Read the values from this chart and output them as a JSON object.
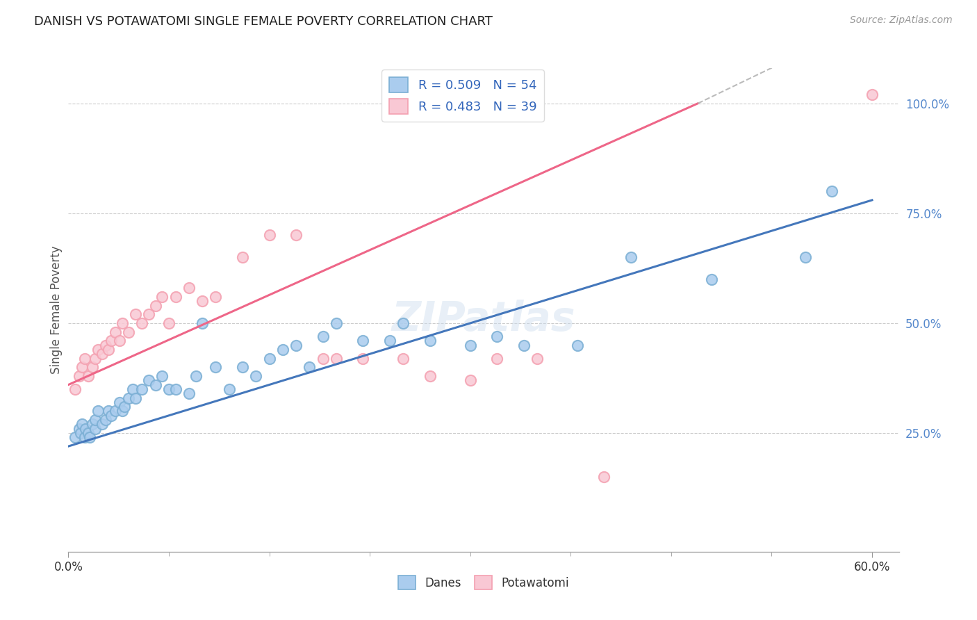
{
  "title": "DANISH VS POTAWATOMI SINGLE FEMALE POVERTY CORRELATION CHART",
  "source": "Source: ZipAtlas.com",
  "ylabel": "Single Female Poverty",
  "xlim": [
    0.0,
    0.62
  ],
  "ylim": [
    -0.02,
    1.08
  ],
  "ytick_vals_right": [
    0.25,
    0.5,
    0.75,
    1.0
  ],
  "ytick_labels_right": [
    "25.0%",
    "50.0%",
    "75.0%",
    "100.0%"
  ],
  "blue_color": "#7BAFD4",
  "blue_face_color": "#AACCEE",
  "pink_color": "#F4A0B0",
  "pink_face_color": "#F9C8D4",
  "blue_line_color": "#4477BB",
  "pink_line_color": "#EE6688",
  "trendline_extend_color": "#BBBBBB",
  "R_blue": 0.509,
  "N_blue": 54,
  "R_pink": 0.483,
  "N_pink": 39,
  "legend_label_blue": "Danes",
  "legend_label_pink": "Potawatomi",
  "watermark_text": "ZIPatlas",
  "blue_trendline": [
    [
      0.0,
      0.22
    ],
    [
      0.6,
      0.78
    ]
  ],
  "pink_trendline_solid": [
    [
      0.0,
      0.36
    ],
    [
      0.47,
      1.0
    ]
  ],
  "pink_trendline_dashed": [
    [
      0.47,
      1.0
    ],
    [
      0.62,
      1.22
    ]
  ],
  "blue_x": [
    0.005,
    0.008,
    0.009,
    0.01,
    0.012,
    0.013,
    0.015,
    0.016,
    0.018,
    0.02,
    0.02,
    0.022,
    0.025,
    0.028,
    0.03,
    0.032,
    0.035,
    0.038,
    0.04,
    0.042,
    0.045,
    0.048,
    0.05,
    0.055,
    0.06,
    0.065,
    0.07,
    0.075,
    0.08,
    0.09,
    0.095,
    0.1,
    0.11,
    0.12,
    0.13,
    0.14,
    0.15,
    0.16,
    0.17,
    0.18,
    0.19,
    0.2,
    0.22,
    0.24,
    0.25,
    0.27,
    0.3,
    0.32,
    0.34,
    0.38,
    0.42,
    0.48,
    0.55,
    0.57
  ],
  "blue_y": [
    0.24,
    0.26,
    0.25,
    0.27,
    0.24,
    0.26,
    0.25,
    0.24,
    0.27,
    0.26,
    0.28,
    0.3,
    0.27,
    0.28,
    0.3,
    0.29,
    0.3,
    0.32,
    0.3,
    0.31,
    0.33,
    0.35,
    0.33,
    0.35,
    0.37,
    0.36,
    0.38,
    0.35,
    0.35,
    0.34,
    0.38,
    0.5,
    0.4,
    0.35,
    0.4,
    0.38,
    0.42,
    0.44,
    0.45,
    0.4,
    0.47,
    0.5,
    0.46,
    0.46,
    0.5,
    0.46,
    0.45,
    0.47,
    0.45,
    0.45,
    0.65,
    0.6,
    0.65,
    0.8
  ],
  "pink_x": [
    0.005,
    0.008,
    0.01,
    0.012,
    0.015,
    0.018,
    0.02,
    0.022,
    0.025,
    0.028,
    0.03,
    0.032,
    0.035,
    0.038,
    0.04,
    0.045,
    0.05,
    0.055,
    0.06,
    0.065,
    0.07,
    0.075,
    0.08,
    0.09,
    0.1,
    0.11,
    0.13,
    0.15,
    0.17,
    0.19,
    0.2,
    0.22,
    0.25,
    0.27,
    0.3,
    0.32,
    0.35,
    0.4,
    0.6
  ],
  "pink_y": [
    0.35,
    0.38,
    0.4,
    0.42,
    0.38,
    0.4,
    0.42,
    0.44,
    0.43,
    0.45,
    0.44,
    0.46,
    0.48,
    0.46,
    0.5,
    0.48,
    0.52,
    0.5,
    0.52,
    0.54,
    0.56,
    0.5,
    0.56,
    0.58,
    0.55,
    0.56,
    0.65,
    0.7,
    0.7,
    0.42,
    0.42,
    0.42,
    0.42,
    0.38,
    0.37,
    0.42,
    0.42,
    0.15,
    1.02
  ]
}
